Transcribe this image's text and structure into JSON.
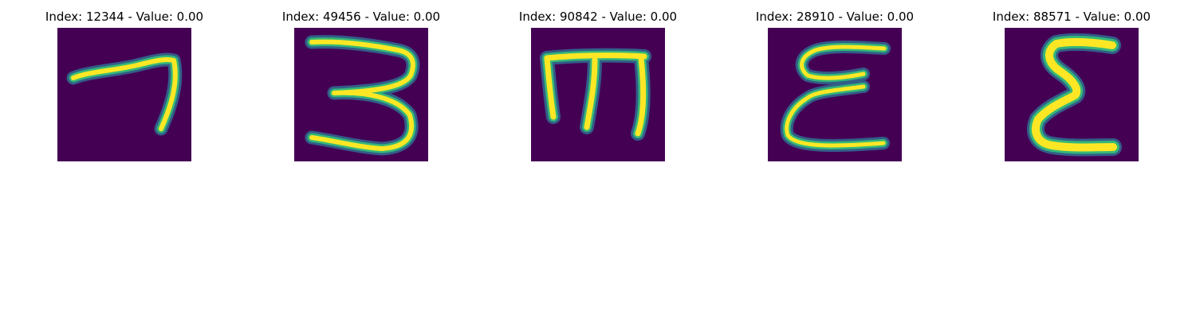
{
  "chart_data": {
    "type": "heatmap",
    "grid": false,
    "axes_visible": false,
    "colormap": "viridis",
    "colors": {
      "background": "#440154",
      "low": "#3b528b",
      "mid": "#21918c",
      "high": "#5ec962",
      "peak": "#fde725"
    },
    "panels": [
      {
        "title": "Index: 12344 - Value: 0.00",
        "glyph": "7"
      },
      {
        "title": "Index: 49456 - Value: 0.00",
        "glyph": "3"
      },
      {
        "title": "Index: 90842 - Value: 0.00",
        "glyph": "m"
      },
      {
        "title": "Index: 28910 - Value: 0.00",
        "glyph": "epsilon"
      },
      {
        "title": "Index: 88571 - Value: 0.00",
        "glyph": "sigma-e"
      }
    ]
  }
}
